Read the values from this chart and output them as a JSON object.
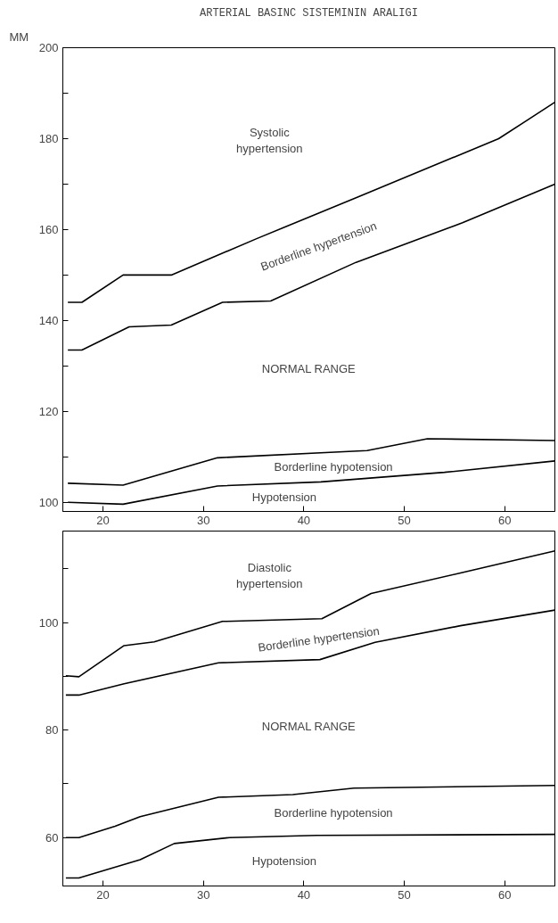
{
  "chart_data": [
    {
      "type": "line",
      "title": "ARTERIAL BASINC SISTEMININ ARALIGI",
      "ylabel": "MM",
      "xlim": [
        16,
        65
      ],
      "ylim": [
        98,
        200
      ],
      "xticks": [
        20,
        30,
        40,
        50,
        60
      ],
      "yticks": [
        100,
        {
          "value": 110,
          "label": null
        },
        120,
        {
          "value": 130,
          "label": null
        },
        140,
        {
          "value": 150,
          "label": null
        },
        160,
        {
          "value": 170,
          "label": null
        },
        180,
        {
          "value": 190,
          "label": null
        },
        200
      ],
      "grid": false,
      "series": [
        {
          "color": "#000000",
          "x": [
            16.5,
            17.9,
            22.0,
            26.8,
            35.3,
            45.2,
            59.4,
            62.2,
            65
          ],
          "values": [
            144,
            144,
            150,
            150,
            158,
            167,
            180,
            184,
            188
          ]
        },
        {
          "color": "#000000",
          "x": [
            16.5,
            17.9,
            22.6,
            26.8,
            31.9,
            36.7,
            45.2,
            55.8,
            65
          ],
          "values": [
            133.5,
            133.5,
            138.6,
            139,
            144,
            144.3,
            152.8,
            161.5,
            170
          ]
        },
        {
          "color": "#000000",
          "x": [
            16.5,
            22.0,
            31.4,
            46.3,
            52.3,
            65
          ],
          "values": [
            104.2,
            103.8,
            109.8,
            111.4,
            114,
            113.6
          ]
        },
        {
          "color": "#000000",
          "x": [
            16.5,
            22.0,
            31.4,
            41.7,
            54.0,
            65
          ],
          "values": [
            100,
            99.6,
            103.6,
            104.5,
            106.6,
            109.1
          ]
        }
      ],
      "annotations": [
        "Systolic\nhypertension",
        "Borderline hypertension",
        "NORMAL RANGE",
        "Borderline hypotension",
        "Hypotension"
      ]
    },
    {
      "type": "line",
      "xlim": [
        16,
        65
      ],
      "ylim": [
        51,
        117
      ],
      "xticks": [
        20,
        30,
        40,
        50,
        60
      ],
      "yticks": [
        60,
        {
          "value": 70,
          "label": null
        },
        80,
        {
          "value": 90,
          "label": null
        },
        100,
        {
          "value": 110,
          "label": null
        }
      ],
      "grid": false,
      "series": [
        {
          "color": "#000000",
          "x": [
            16.3,
            17.6,
            22.1,
            25.1,
            31.9,
            41.8,
            46.7,
            55.6,
            65
          ],
          "values": [
            90.1,
            89.9,
            95.7,
            96.4,
            100.2,
            100.7,
            105.4,
            109.2,
            113.3
          ]
        },
        {
          "color": "#000000",
          "x": [
            16.3,
            17.6,
            22.1,
            31.5,
            41.6,
            47.1,
            55.6,
            65
          ],
          "values": [
            86.5,
            86.5,
            88.6,
            92.5,
            93.1,
            96.3,
            99.4,
            102.3
          ]
        },
        {
          "color": "#000000",
          "x": [
            16.3,
            17.6,
            21.2,
            23.7,
            31.5,
            38.9,
            45.0,
            65
          ],
          "values": [
            60,
            60,
            62.1,
            63.9,
            67.5,
            68,
            69.2,
            69.7
          ]
        },
        {
          "color": "#000000",
          "x": [
            16.3,
            17.6,
            23.7,
            27.1,
            32.6,
            41.3,
            65
          ],
          "values": [
            52.5,
            52.5,
            55.9,
            58.9,
            60,
            60.4,
            60.6
          ]
        }
      ],
      "annotations": [
        "Diastolic\nhypertension",
        "Borderline hypertension",
        "NORMAL RANGE",
        "Borderline hypotension",
        "Hypotension"
      ]
    }
  ]
}
